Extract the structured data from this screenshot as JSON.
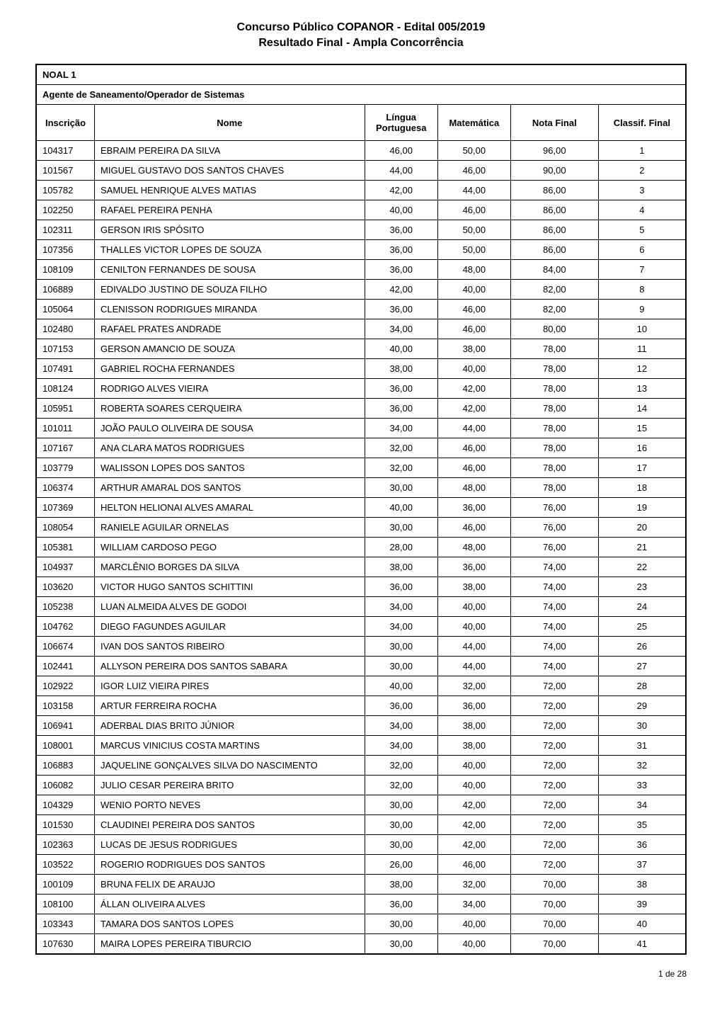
{
  "header": {
    "line1": "Concurso Público COPANOR - Edital 005/2019",
    "line2": "Resultado Final - Ampla Concorrência"
  },
  "table": {
    "noal_label": "NOAL 1",
    "agente_label": "Agente de Saneamento/Operador de Sistemas",
    "columns": {
      "inscricao": "Inscrição",
      "nome": "Nome",
      "lingua": "Língua Portuguesa",
      "matematica": "Matemática",
      "nota_final": "Nota Final",
      "classif_final": "Classif. Final"
    },
    "rows": [
      {
        "inscricao": "104317",
        "nome": "EBRAIM PEREIRA DA SILVA",
        "lingua": "46,00",
        "matematica": "50,00",
        "nota_final": "96,00",
        "classif": "1"
      },
      {
        "inscricao": "101567",
        "nome": "MIGUEL GUSTAVO DOS SANTOS CHAVES",
        "lingua": "44,00",
        "matematica": "46,00",
        "nota_final": "90,00",
        "classif": "2"
      },
      {
        "inscricao": "105782",
        "nome": "SAMUEL HENRIQUE ALVES MATIAS",
        "lingua": "42,00",
        "matematica": "44,00",
        "nota_final": "86,00",
        "classif": "3"
      },
      {
        "inscricao": "102250",
        "nome": "RAFAEL PEREIRA PENHA",
        "lingua": "40,00",
        "matematica": "46,00",
        "nota_final": "86,00",
        "classif": "4"
      },
      {
        "inscricao": "102311",
        "nome": "GERSON IRIS SPÓSITO",
        "lingua": "36,00",
        "matematica": "50,00",
        "nota_final": "86,00",
        "classif": "5"
      },
      {
        "inscricao": "107356",
        "nome": "THALLES VICTOR LOPES DE SOUZA",
        "lingua": "36,00",
        "matematica": "50,00",
        "nota_final": "86,00",
        "classif": "6"
      },
      {
        "inscricao": "108109",
        "nome": "CENILTON FERNANDES DE SOUSA",
        "lingua": "36,00",
        "matematica": "48,00",
        "nota_final": "84,00",
        "classif": "7"
      },
      {
        "inscricao": "106889",
        "nome": "EDIVALDO JUSTINO DE SOUZA FILHO",
        "lingua": "42,00",
        "matematica": "40,00",
        "nota_final": "82,00",
        "classif": "8"
      },
      {
        "inscricao": "105064",
        "nome": "CLENISSON RODRIGUES MIRANDA",
        "lingua": "36,00",
        "matematica": "46,00",
        "nota_final": "82,00",
        "classif": "9"
      },
      {
        "inscricao": "102480",
        "nome": "RAFAEL PRATES ANDRADE",
        "lingua": "34,00",
        "matematica": "46,00",
        "nota_final": "80,00",
        "classif": "10"
      },
      {
        "inscricao": "107153",
        "nome": "GERSON AMANCIO DE SOUZA",
        "lingua": "40,00",
        "matematica": "38,00",
        "nota_final": "78,00",
        "classif": "11"
      },
      {
        "inscricao": "107491",
        "nome": "GABRIEL ROCHA FERNANDES",
        "lingua": "38,00",
        "matematica": "40,00",
        "nota_final": "78,00",
        "classif": "12"
      },
      {
        "inscricao": "108124",
        "nome": "RODRIGO ALVES VIEIRA",
        "lingua": "36,00",
        "matematica": "42,00",
        "nota_final": "78,00",
        "classif": "13"
      },
      {
        "inscricao": "105951",
        "nome": "ROBERTA SOARES CERQUEIRA",
        "lingua": "36,00",
        "matematica": "42,00",
        "nota_final": "78,00",
        "classif": "14"
      },
      {
        "inscricao": "101011",
        "nome": "JOÃO PAULO OLIVEIRA DE SOUSA",
        "lingua": "34,00",
        "matematica": "44,00",
        "nota_final": "78,00",
        "classif": "15"
      },
      {
        "inscricao": "107167",
        "nome": "ANA CLARA MATOS RODRIGUES",
        "lingua": "32,00",
        "matematica": "46,00",
        "nota_final": "78,00",
        "classif": "16"
      },
      {
        "inscricao": "103779",
        "nome": "WALISSON LOPES DOS SANTOS",
        "lingua": "32,00",
        "matematica": "46,00",
        "nota_final": "78,00",
        "classif": "17"
      },
      {
        "inscricao": "106374",
        "nome": "ARTHUR AMARAL DOS SANTOS",
        "lingua": "30,00",
        "matematica": "48,00",
        "nota_final": "78,00",
        "classif": "18"
      },
      {
        "inscricao": "107369",
        "nome": "HELTON HELIONAI ALVES AMARAL",
        "lingua": "40,00",
        "matematica": "36,00",
        "nota_final": "76,00",
        "classif": "19"
      },
      {
        "inscricao": "108054",
        "nome": "RANIELE AGUILAR ORNELAS",
        "lingua": "30,00",
        "matematica": "46,00",
        "nota_final": "76,00",
        "classif": "20"
      },
      {
        "inscricao": "105381",
        "nome": "WILLIAM CARDOSO PEGO",
        "lingua": "28,00",
        "matematica": "48,00",
        "nota_final": "76,00",
        "classif": "21"
      },
      {
        "inscricao": "104937",
        "nome": "MARCLÊNIO BORGES DA SILVA",
        "lingua": "38,00",
        "matematica": "36,00",
        "nota_final": "74,00",
        "classif": "22"
      },
      {
        "inscricao": "103620",
        "nome": "VICTOR HUGO SANTOS SCHITTINI",
        "lingua": "36,00",
        "matematica": "38,00",
        "nota_final": "74,00",
        "classif": "23"
      },
      {
        "inscricao": "105238",
        "nome": "LUAN ALMEIDA ALVES DE GODOI",
        "lingua": "34,00",
        "matematica": "40,00",
        "nota_final": "74,00",
        "classif": "24"
      },
      {
        "inscricao": "104762",
        "nome": "DIEGO FAGUNDES AGUILAR",
        "lingua": "34,00",
        "matematica": "40,00",
        "nota_final": "74,00",
        "classif": "25"
      },
      {
        "inscricao": "106674",
        "nome": "IVAN DOS SANTOS RIBEIRO",
        "lingua": "30,00",
        "matematica": "44,00",
        "nota_final": "74,00",
        "classif": "26"
      },
      {
        "inscricao": "102441",
        "nome": "ALLYSON PEREIRA DOS SANTOS SABARA",
        "lingua": "30,00",
        "matematica": "44,00",
        "nota_final": "74,00",
        "classif": "27"
      },
      {
        "inscricao": "102922",
        "nome": "IGOR LUIZ VIEIRA PIRES",
        "lingua": "40,00",
        "matematica": "32,00",
        "nota_final": "72,00",
        "classif": "28"
      },
      {
        "inscricao": "103158",
        "nome": "ARTUR FERREIRA ROCHA",
        "lingua": "36,00",
        "matematica": "36,00",
        "nota_final": "72,00",
        "classif": "29"
      },
      {
        "inscricao": "106941",
        "nome": "ADERBAL DIAS BRITO JÚNIOR",
        "lingua": "34,00",
        "matematica": "38,00",
        "nota_final": "72,00",
        "classif": "30"
      },
      {
        "inscricao": "108001",
        "nome": "MARCUS VINICIUS COSTA MARTINS",
        "lingua": "34,00",
        "matematica": "38,00",
        "nota_final": "72,00",
        "classif": "31"
      },
      {
        "inscricao": "106883",
        "nome": "JAQUELINE GONÇALVES SILVA DO NASCIMENTO",
        "lingua": "32,00",
        "matematica": "40,00",
        "nota_final": "72,00",
        "classif": "32"
      },
      {
        "inscricao": "106082",
        "nome": "JULIO CESAR PEREIRA BRITO",
        "lingua": "32,00",
        "matematica": "40,00",
        "nota_final": "72,00",
        "classif": "33"
      },
      {
        "inscricao": "104329",
        "nome": "WENIO PORTO NEVES",
        "lingua": "30,00",
        "matematica": "42,00",
        "nota_final": "72,00",
        "classif": "34"
      },
      {
        "inscricao": "101530",
        "nome": "CLAUDINEI PEREIRA DOS SANTOS",
        "lingua": "30,00",
        "matematica": "42,00",
        "nota_final": "72,00",
        "classif": "35"
      },
      {
        "inscricao": "102363",
        "nome": "LUCAS DE JESUS RODRIGUES",
        "lingua": "30,00",
        "matematica": "42,00",
        "nota_final": "72,00",
        "classif": "36"
      },
      {
        "inscricao": "103522",
        "nome": "ROGERIO RODRIGUES DOS SANTOS",
        "lingua": "26,00",
        "matematica": "46,00",
        "nota_final": "72,00",
        "classif": "37"
      },
      {
        "inscricao": "100109",
        "nome": "BRUNA FELIX DE ARAUJO",
        "lingua": "38,00",
        "matematica": "32,00",
        "nota_final": "70,00",
        "classif": "38"
      },
      {
        "inscricao": "108100",
        "nome": "ÁLLAN OLIVEIRA ALVES",
        "lingua": "36,00",
        "matematica": "34,00",
        "nota_final": "70,00",
        "classif": "39"
      },
      {
        "inscricao": "103343",
        "nome": "TAMARA DOS SANTOS LOPES",
        "lingua": "30,00",
        "matematica": "40,00",
        "nota_final": "70,00",
        "classif": "40"
      },
      {
        "inscricao": "107630",
        "nome": "MAIRA LOPES PEREIRA TIBURCIO",
        "lingua": "30,00",
        "matematica": "40,00",
        "nota_final": "70,00",
        "classif": "41"
      }
    ]
  },
  "footer": {
    "page_info": "1 de 28"
  },
  "styling": {
    "font_family": "Arial, sans-serif",
    "header_fontsize": 16,
    "table_fontsize": 13,
    "footer_fontsize": 12,
    "border_color": "#000000",
    "background_color": "#ffffff"
  }
}
